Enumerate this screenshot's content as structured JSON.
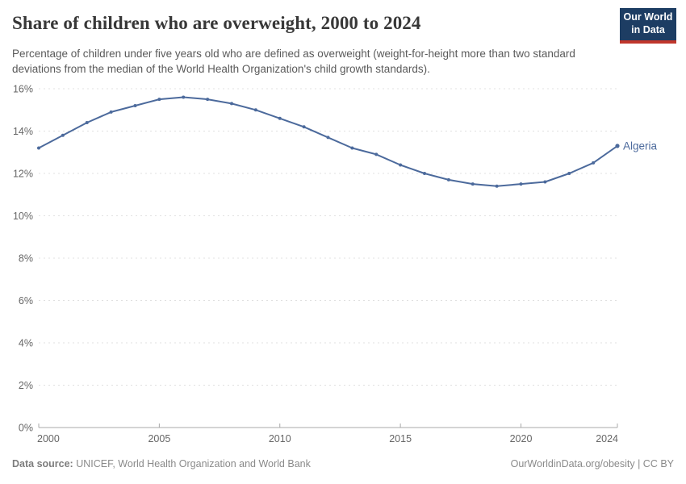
{
  "header": {
    "title": "Share of children who are overweight, 2000 to 2024",
    "subtitle": "Percentage of children under five years old who are defined as overweight (weight-for-height more than two standard deviations from the median of the World Health Organization's child growth standards)."
  },
  "logo": {
    "line1": "Our World",
    "line2": "in Data",
    "bg_color": "#1d3d63",
    "stripe_color": "#c0362c"
  },
  "footer": {
    "source_label": "Data source:",
    "source_text": " UNICEF, World Health Organization and World Bank",
    "right_text": "OurWorldinData.org/obesity | CC BY"
  },
  "chart_data": {
    "type": "line",
    "title": "Share of children who are overweight, 2000 to 2024",
    "entity_label": "Algeria",
    "x": [
      2000,
      2001,
      2002,
      2003,
      2004,
      2005,
      2006,
      2007,
      2008,
      2009,
      2010,
      2011,
      2012,
      2013,
      2014,
      2015,
      2016,
      2017,
      2018,
      2019,
      2020,
      2021,
      2022,
      2023,
      2024
    ],
    "series": [
      {
        "name": "Algeria",
        "color": "#4C6A9C",
        "values": [
          13.2,
          13.8,
          14.4,
          14.9,
          15.2,
          15.5,
          15.6,
          15.5,
          15.3,
          15.0,
          14.6,
          14.2,
          13.7,
          13.2,
          12.9,
          12.4,
          12.0,
          11.7,
          11.5,
          11.4,
          11.5,
          11.6,
          12.0,
          12.5,
          13.3
        ]
      }
    ],
    "xlim": [
      2000,
      2024
    ],
    "ylim": [
      0,
      16
    ],
    "x_ticks": [
      2000,
      2005,
      2010,
      2015,
      2020,
      2024
    ],
    "y_ticks": [
      0,
      2,
      4,
      6,
      8,
      10,
      12,
      14,
      16
    ],
    "y_tick_suffix": "%",
    "grid": "horizontal-dashed",
    "legend_position": "end-of-line-label",
    "colors": {
      "grid": "#e0e0e0",
      "axis": "#a8a8a8",
      "tick_label": "#666666"
    }
  }
}
